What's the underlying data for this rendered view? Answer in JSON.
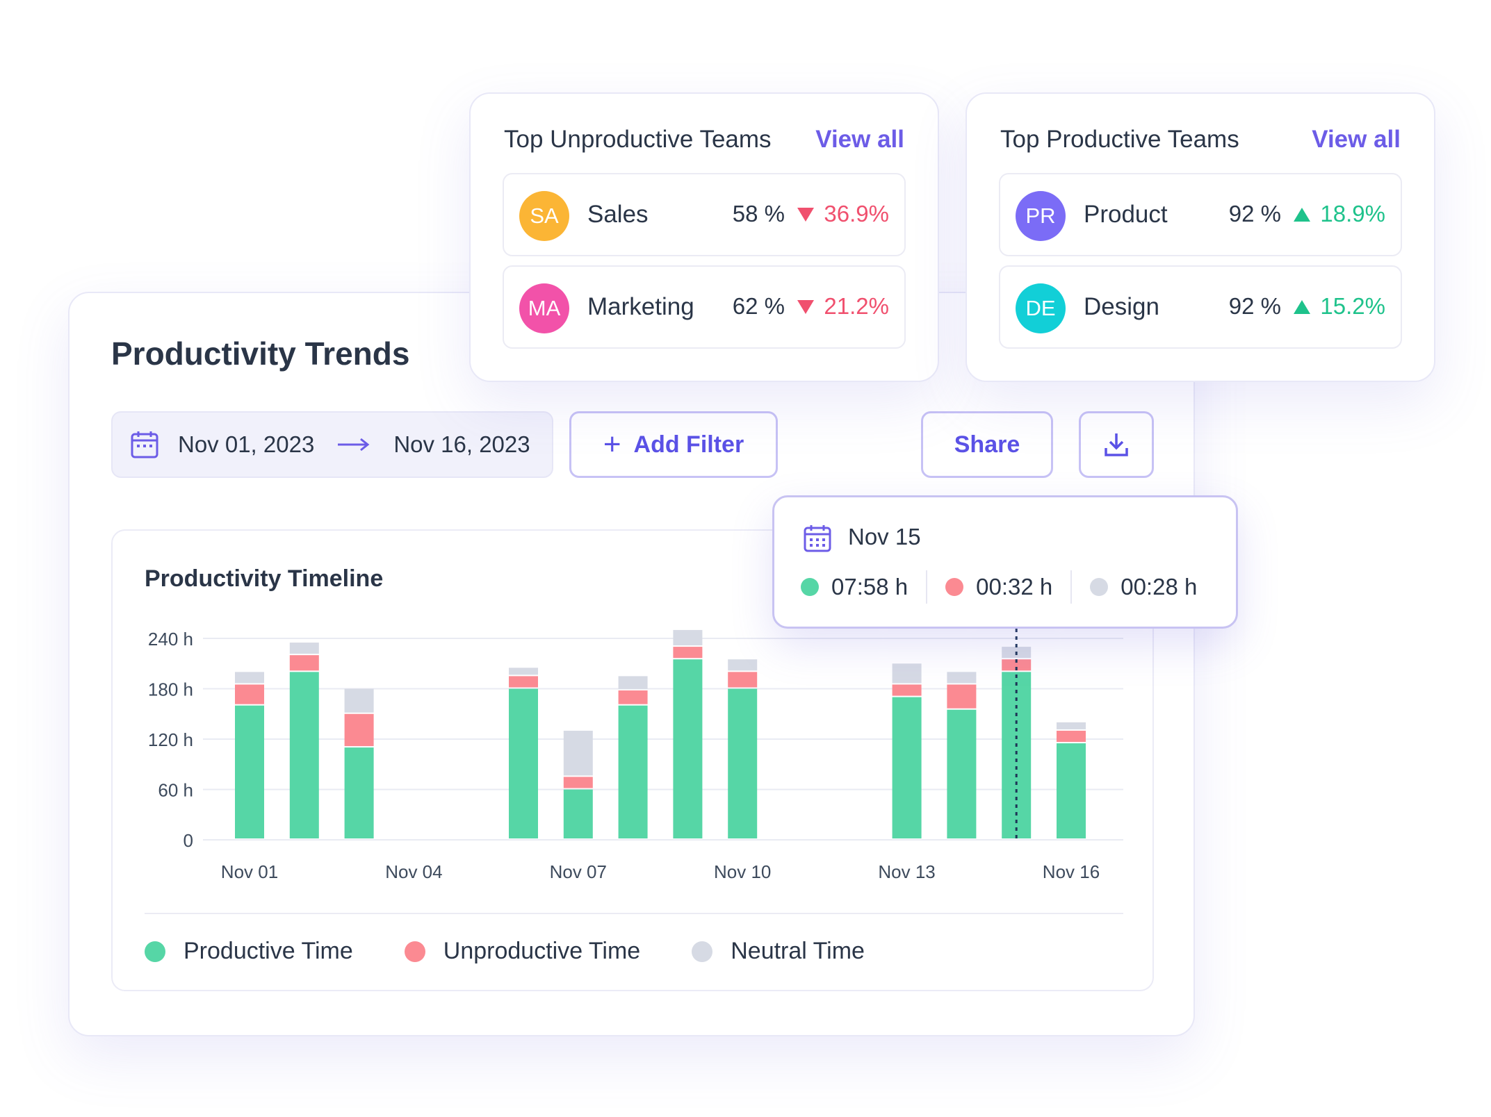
{
  "main": {
    "title": "Productivity Trends",
    "date_start": "Nov 01, 2023",
    "date_end": "Nov 16, 2023",
    "add_filter_label": "Add Filter",
    "share_label": "Share"
  },
  "colors": {
    "productive": "#56d6a6",
    "unproductive": "#fb8a92",
    "neutral": "#d6dae4",
    "accent": "#6c5ce7",
    "down": "#f0506e",
    "up": "#1ec28b"
  },
  "unproductive_teams": {
    "title": "Top Unproductive Teams",
    "view_all": "View all",
    "rows": [
      {
        "initials": "SA",
        "name": "Sales",
        "pct": "58 %",
        "change": "36.9%",
        "avatar_color": "#fbb535"
      },
      {
        "initials": "MA",
        "name": "Marketing",
        "pct": "62 %",
        "change": "21.2%",
        "avatar_color": "#f252a9"
      }
    ]
  },
  "productive_teams": {
    "title": "Top Productive Teams",
    "view_all": "View all",
    "rows": [
      {
        "initials": "PR",
        "name": "Product",
        "pct": "92 %",
        "change": "18.9%",
        "avatar_color": "#7b6cf6"
      },
      {
        "initials": "DE",
        "name": "Design",
        "pct": "92 %",
        "change": "15.2%",
        "avatar_color": "#12cfd7"
      }
    ]
  },
  "tooltip": {
    "date": "Nov 15",
    "productive": "07:58 h",
    "unproductive": "00:32 h",
    "neutral": "00:28 h"
  },
  "legend": {
    "productive": "Productive Time",
    "unproductive": "Unproductive Time",
    "neutral": "Neutral Time"
  },
  "chart_data": {
    "type": "bar",
    "stacked": true,
    "title": "Productivity Timeline",
    "ylim": [
      0,
      240
    ],
    "y_ticks": [
      "0",
      "60 h",
      "120 h",
      "180 h",
      "240 h"
    ],
    "categories": [
      "Nov 01",
      "Nov 02",
      "Nov 03",
      "Nov 04",
      "Nov 05",
      "Nov 06",
      "Nov 07",
      "Nov 08",
      "Nov 09",
      "Nov 10",
      "Nov 11",
      "Nov 12",
      "Nov 13",
      "Nov 14",
      "Nov 15",
      "Nov 16"
    ],
    "x_tick_labels": [
      "Nov 01",
      "Nov 04",
      "Nov 07",
      "Nov 10",
      "Nov 13",
      "Nov 16"
    ],
    "series": [
      {
        "name": "Productive Time",
        "values": [
          160,
          200,
          110,
          0,
          0,
          180,
          60,
          160,
          215,
          180,
          0,
          0,
          170,
          155,
          200,
          115
        ]
      },
      {
        "name": "Unproductive Time",
        "values": [
          25,
          20,
          40,
          0,
          0,
          15,
          15,
          18,
          15,
          20,
          0,
          0,
          15,
          30,
          15,
          15
        ]
      },
      {
        "name": "Neutral Time",
        "values": [
          15,
          15,
          30,
          0,
          0,
          10,
          55,
          17,
          20,
          15,
          0,
          0,
          25,
          15,
          15,
          10
        ]
      }
    ],
    "highlight": "Nov 15",
    "grid": true,
    "legend_position": "bottom-left"
  }
}
